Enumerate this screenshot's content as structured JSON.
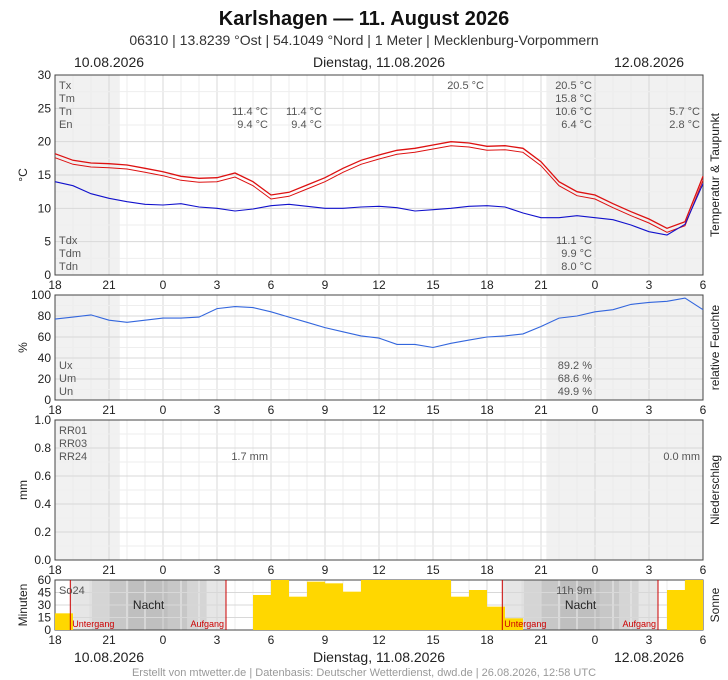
{
  "header": {
    "title": "Karlshagen  —  11. August 2026",
    "subtitle": "06310  |  13.8239 °Ost  |  54.1049 °Nord  |  1 Meter  |  Mecklenburg-Vorpommern"
  },
  "dates": {
    "left": "10.08.2026",
    "center": "Dienstag, 11.08.2026",
    "right": "12.08.2026"
  },
  "x_ticks": [
    "18",
    "21",
    "0",
    "3",
    "6",
    "9",
    "12",
    "15",
    "18",
    "21",
    "0",
    "3",
    "6"
  ],
  "footer": "Erstellt von mtwetter.de | Datenbasis: Deutscher Wetterdienst, dwd.de | 26.08.2026, 12:58 UTC",
  "colors": {
    "temp": "#dd1111",
    "dewpoint": "#1111cc",
    "humidity": "#3366dd",
    "sun": "#ffd700",
    "night_red": "#cc0000"
  },
  "chart_data": [
    {
      "type": "line",
      "name": "temperature",
      "ylabel": "°C",
      "side_label": "Temperatur & Taupunkt",
      "ylim": [
        0,
        30
      ],
      "y_ticks": [
        "0",
        "5",
        "10",
        "15",
        "20",
        "25",
        "30"
      ],
      "x_hours": [
        0,
        1,
        2,
        3,
        4,
        5,
        6,
        7,
        8,
        9,
        10,
        11,
        12,
        13,
        14,
        15,
        16,
        17,
        18,
        19,
        20,
        21,
        22,
        23,
        24,
        25,
        26,
        27,
        28,
        29,
        30,
        31,
        32,
        33,
        34,
        35,
        36
      ],
      "series": [
        {
          "name": "Temperatur",
          "values": [
            18.2,
            17.2,
            16.8,
            16.7,
            16.5,
            16.0,
            15.5,
            14.8,
            14.5,
            14.6,
            15.3,
            14.0,
            12.0,
            12.4,
            13.5,
            14.6,
            16.0,
            17.2,
            18.0,
            18.7,
            19.0,
            19.5,
            20.0,
            19.8,
            19.3,
            19.4,
            19.0,
            17.0,
            14.0,
            12.5,
            12.0,
            10.7,
            9.5,
            8.4,
            7.0,
            8.0,
            14.8
          ]
        },
        {
          "name": "Taupunkt",
          "values": [
            14.0,
            13.4,
            12.2,
            11.5,
            11.0,
            10.6,
            10.5,
            10.7,
            10.2,
            10.0,
            9.6,
            9.9,
            10.4,
            10.6,
            10.3,
            10.0,
            10.0,
            10.2,
            10.3,
            10.1,
            9.6,
            9.8,
            10.0,
            10.3,
            10.4,
            10.2,
            9.3,
            8.6,
            8.6,
            8.9,
            8.6,
            8.3,
            7.5,
            6.5,
            6.0,
            7.6,
            13.7
          ]
        }
      ],
      "stats_left": [
        "Tx",
        "Tm",
        "Tn",
        "En"
      ],
      "stats_left_bottom": [
        "Tdx",
        "Tdm",
        "Tdn"
      ],
      "day1": {
        "tx": "20.5 °C",
        "tn": "11.4 °C",
        "en": "9.4 °C",
        "tn2": "11.4 °C",
        "en2": "9.4 °C",
        "tx_mid": "20.5 °C"
      },
      "day_main": {
        "tx": "20.5 °C",
        "tm": "15.8 °C",
        "tn": "10.6 °C",
        "en": "6.4 °C",
        "tdx": "11.1 °C",
        "tdm": "9.9 °C",
        "tdn": "8.0 °C"
      },
      "day3": {
        "tn": "5.7 °C",
        "en": "2.8 °C"
      }
    },
    {
      "type": "line",
      "name": "humidity",
      "ylabel": "%",
      "side_label": "relative Feuchte",
      "ylim": [
        0,
        100
      ],
      "y_ticks": [
        "0",
        "20",
        "40",
        "60",
        "80",
        "100"
      ],
      "x_hours": [
        0,
        1,
        2,
        3,
        4,
        5,
        6,
        7,
        8,
        9,
        10,
        11,
        12,
        13,
        14,
        15,
        16,
        17,
        18,
        19,
        20,
        21,
        22,
        23,
        24,
        25,
        26,
        27,
        28,
        29,
        30,
        31,
        32,
        33,
        34,
        35,
        36
      ],
      "series": [
        {
          "name": "Feuchte",
          "values": [
            77,
            79,
            81,
            76,
            74,
            76,
            78,
            78,
            79,
            87,
            89,
            88,
            84,
            79,
            74,
            69,
            65,
            61,
            59,
            53,
            53,
            50,
            54,
            57,
            60,
            61,
            63,
            70,
            78,
            80,
            84,
            86,
            91,
            93,
            94,
            97,
            86
          ]
        }
      ],
      "stats_left": [
        "Ux",
        "Um",
        "Un"
      ],
      "day_main": {
        "ux": "89.2 %",
        "um": "68.6 %",
        "un": "49.9 %"
      }
    },
    {
      "type": "bar",
      "name": "precipitation",
      "ylabel": "mm",
      "side_label": "Niederschlag",
      "ylim": [
        0,
        1.0
      ],
      "y_ticks": [
        "0.0",
        "0.2",
        "0.4",
        "0.6",
        "0.8",
        "1.0"
      ],
      "stats_left": [
        "RR01",
        "RR03",
        "RR24"
      ],
      "day_main": {
        "rr24": "1.7 mm"
      },
      "day3": {
        "rr24": "0.0 mm"
      }
    },
    {
      "type": "bar",
      "name": "sunshine",
      "ylabel": "Minuten",
      "side_label": "Sonne",
      "ylim": [
        0,
        60
      ],
      "y_ticks": [
        "0",
        "15",
        "30",
        "45",
        "60"
      ],
      "x_hours": [
        0,
        1,
        2,
        3,
        4,
        5,
        6,
        7,
        8,
        9,
        10,
        11,
        12,
        13,
        14,
        15,
        16,
        17,
        18,
        19,
        20,
        21,
        22,
        23,
        24,
        25,
        26,
        27,
        28,
        29,
        30,
        31,
        32,
        33,
        34,
        35
      ],
      "values": [
        20,
        0,
        0,
        0,
        0,
        0,
        0,
        0,
        0,
        0,
        0,
        42,
        60,
        40,
        58,
        56,
        46,
        60,
        60,
        60,
        60,
        60,
        40,
        48,
        28,
        14,
        0,
        0,
        0,
        0,
        0,
        0,
        0,
        0,
        48,
        60
      ],
      "stats_left": [
        "So24"
      ],
      "day_main": {
        "so24": "11h 9m"
      },
      "night_label": "Nacht",
      "sunset_label": "Untergang",
      "sunrise_label": "Aufgang"
    }
  ]
}
